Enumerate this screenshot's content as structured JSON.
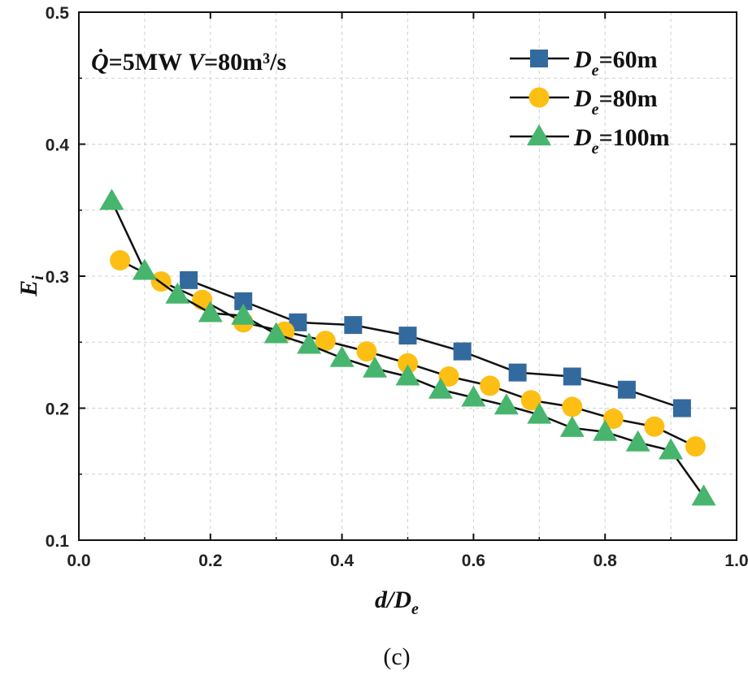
{
  "chart_data": {
    "type": "line",
    "annotation": {
      "q": "Q̇",
      "eq1": "=5MW ",
      "v": "V",
      "eq2": "=80m³/s"
    },
    "xlabel": {
      "main": "d/D",
      "sub": "e"
    },
    "ylabel": {
      "main": "E",
      "sub": "i"
    },
    "caption": "(c)",
    "xlim": [
      0.0,
      1.0
    ],
    "ylim": [
      0.1,
      0.5
    ],
    "xticks": [
      "0.0",
      "0.2",
      "0.4",
      "0.6",
      "0.8",
      "1.0"
    ],
    "yticks": [
      "0.1",
      "0.2",
      "0.3",
      "0.4",
      "0.5"
    ],
    "grid": true,
    "legend_position": "top-right",
    "series": [
      {
        "name": "De=60m",
        "name_parts": {
          "main": "D",
          "sub": "e",
          "rest": "=60m"
        },
        "marker": "square",
        "color": "#336A9E",
        "x": [
          0.167,
          0.25,
          0.333,
          0.417,
          0.5,
          0.583,
          0.667,
          0.75,
          0.833,
          0.917
        ],
        "y": [
          0.297,
          0.281,
          0.265,
          0.263,
          0.255,
          0.243,
          0.227,
          0.224,
          0.214,
          0.2
        ]
      },
      {
        "name": "De=80m",
        "name_parts": {
          "main": "D",
          "sub": "e",
          "rest": "=80m"
        },
        "marker": "circle",
        "color": "#FDBF14",
        "x": [
          0.0625,
          0.125,
          0.1875,
          0.25,
          0.3125,
          0.375,
          0.4375,
          0.5,
          0.5625,
          0.625,
          0.6875,
          0.75,
          0.8125,
          0.875,
          0.9375
        ],
        "y": [
          0.312,
          0.296,
          0.282,
          0.265,
          0.258,
          0.251,
          0.243,
          0.234,
          0.224,
          0.217,
          0.206,
          0.201,
          0.192,
          0.186,
          0.171
        ]
      },
      {
        "name": "De=100m",
        "name_parts": {
          "main": "D",
          "sub": "e",
          "rest": "=100m"
        },
        "marker": "triangle",
        "color": "#47B56D",
        "x": [
          0.05,
          0.1,
          0.15,
          0.2,
          0.25,
          0.3,
          0.35,
          0.4,
          0.45,
          0.5,
          0.55,
          0.6,
          0.65,
          0.7,
          0.75,
          0.8,
          0.85,
          0.9,
          0.95
        ],
        "y": [
          0.357,
          0.304,
          0.286,
          0.272,
          0.27,
          0.256,
          0.248,
          0.238,
          0.23,
          0.224,
          0.214,
          0.208,
          0.202,
          0.195,
          0.185,
          0.182,
          0.174,
          0.168,
          0.133
        ]
      }
    ]
  }
}
